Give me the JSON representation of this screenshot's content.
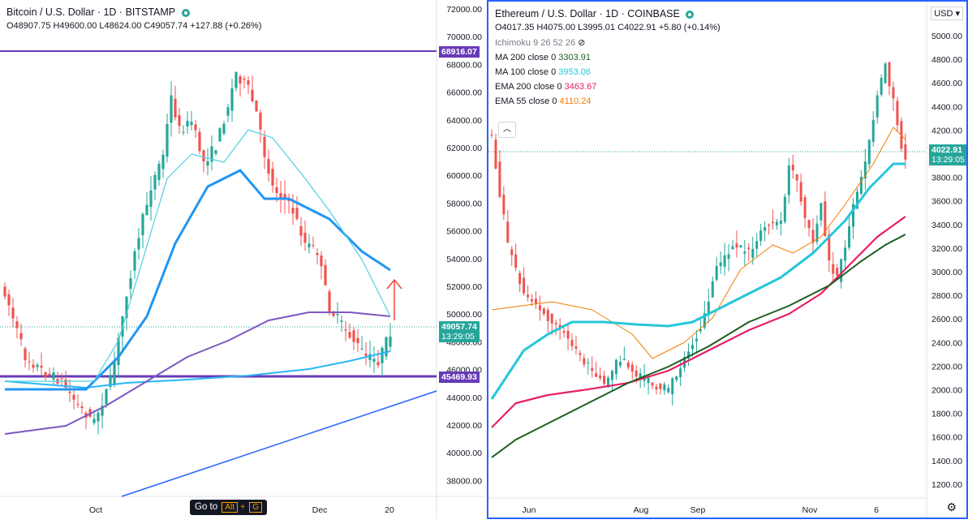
{
  "left": {
    "title": "Bitcoin / U.S. Dollar · 1D · BITSTAMP",
    "ohlc": "O48907.75  H49600.00  L48624.00  C49057.74  +127.88 (+0.26%)",
    "price_axis": [
      "72000.00",
      "70000.00",
      "68000.00",
      "66000.00",
      "64000.00",
      "62000.00",
      "60000.00",
      "58000.00",
      "56000.00",
      "54000.00",
      "52000.00",
      "50000.00",
      "48000.00",
      "46000.00",
      "44000.00",
      "42000.00",
      "40000.00",
      "38000.00"
    ],
    "time_axis": [
      "Oct",
      "Dec",
      "20"
    ],
    "tag_high": "68916.07",
    "tag_price": "49057.74",
    "tag_timer": "13:29:05",
    "tag_low": "45469.93",
    "goto_label": "Go to",
    "goto_key1": "Alt",
    "goto_plus": "+",
    "goto_key2": "G"
  },
  "right": {
    "title": "Ethereum / U.S. Dollar · 1D · COINBASE",
    "ohlc": "O4017.35  H4075.00  L3995.01  C4022.91  +5.80 (+0.14%)",
    "indicators": [
      {
        "label": "Ichimoku 9 26 52 26",
        "value": "",
        "color": "#787b86"
      },
      {
        "label": "MA 200 close 0",
        "value": "3303.91",
        "color": "#1b5e20"
      },
      {
        "label": "MA 100 close 0",
        "value": "3953.06",
        "color": "#26c6da"
      },
      {
        "label": "EMA 200 close 0",
        "value": "3463.67",
        "color": "#e91e63"
      },
      {
        "label": "EMA 55 close 0",
        "value": "4110.24",
        "color": "#f57c00"
      }
    ],
    "price_axis": [
      "5000.00",
      "4800.00",
      "4600.00",
      "4400.00",
      "4200.00",
      "4000.00",
      "3800.00",
      "3600.00",
      "3400.00",
      "3200.00",
      "3000.00",
      "2800.00",
      "2600.00",
      "2400.00",
      "2200.00",
      "2000.00",
      "1800.00",
      "1600.00",
      "1400.00",
      "1200.00"
    ],
    "time_axis": [
      "Jun",
      "Aug",
      "Sep",
      "Nov",
      "6"
    ],
    "tag_price": "4022.91",
    "tag_timer": "13:29:05",
    "currency": "USD"
  },
  "colors": {
    "up": "#26a69a",
    "down": "#ef5350",
    "accent": "#2962ff",
    "hline": "#673ab7"
  }
}
